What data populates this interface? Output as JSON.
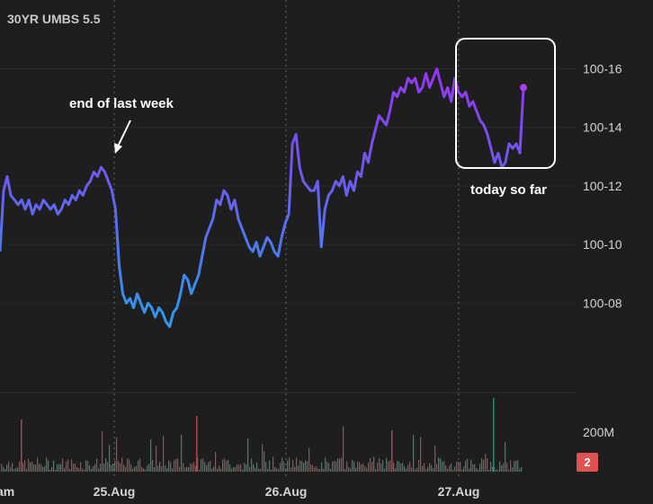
{
  "chart_data": {
    "type": "line",
    "title": "30YR UMBS 5.5",
    "y_tick_labels": [
      "100-08",
      "100-10",
      "100-12",
      "100-14",
      "100-16"
    ],
    "y_tick_values": [
      100.25,
      100.3125,
      100.375,
      100.4375,
      100.5
    ],
    "ylim": [
      100.19,
      100.535
    ],
    "x_tick_labels": [
      "am",
      "25.Aug",
      "26.Aug",
      "27.Aug"
    ],
    "volume_axis_label": "200M",
    "volume_badge": "2",
    "grid": false,
    "annotations": [
      {
        "text": "end of last week"
      },
      {
        "text": "today so far"
      }
    ],
    "series": [
      {
        "x": [
          0,
          1,
          2,
          3,
          4,
          5,
          6,
          7,
          8,
          9,
          10,
          11,
          12,
          13,
          14,
          15,
          16,
          17,
          18,
          19,
          20,
          21,
          22,
          23,
          24,
          25,
          26,
          27,
          28,
          29,
          30,
          31,
          32,
          33,
          34,
          35,
          36,
          37,
          38,
          39,
          40,
          41,
          42,
          43,
          44,
          45,
          46,
          47,
          48,
          49,
          50,
          51,
          52,
          53,
          54,
          55,
          56,
          57,
          58,
          59,
          60,
          61,
          62,
          63,
          64,
          65,
          66,
          67,
          68,
          69,
          70,
          71,
          72,
          73,
          74,
          75,
          76,
          77,
          78,
          79,
          80,
          81,
          82,
          83,
          84,
          85,
          86,
          87,
          88,
          89,
          90,
          91,
          92,
          93,
          94,
          95,
          96,
          97,
          98,
          99,
          100,
          101,
          102,
          103,
          104,
          105,
          106,
          107,
          108,
          109,
          110,
          111,
          112,
          113,
          114,
          115,
          116,
          117,
          118,
          119,
          120,
          121,
          122,
          123,
          124,
          125,
          126,
          127,
          128,
          129,
          130,
          131,
          132,
          133,
          134,
          135,
          136,
          137,
          138,
          139,
          140,
          141,
          142,
          143,
          144,
          145
        ],
        "values": [
          100.305,
          100.37,
          100.385,
          100.365,
          100.36,
          100.355,
          100.36,
          100.35,
          100.36,
          100.345,
          100.355,
          100.35,
          100.36,
          100.355,
          100.35,
          100.355,
          100.345,
          100.35,
          100.36,
          100.355,
          100.365,
          100.36,
          100.37,
          100.365,
          100.375,
          100.38,
          100.39,
          100.385,
          100.395,
          100.39,
          100.38,
          100.37,
          100.35,
          100.29,
          100.26,
          100.25,
          100.255,
          100.245,
          100.26,
          100.25,
          100.24,
          100.25,
          100.245,
          100.235,
          100.245,
          100.24,
          100.23,
          100.225,
          100.24,
          100.245,
          100.26,
          100.28,
          100.275,
          100.26,
          100.27,
          100.28,
          100.3,
          100.32,
          100.33,
          100.34,
          100.36,
          100.355,
          100.37,
          100.365,
          100.35,
          100.36,
          100.34,
          100.33,
          100.32,
          100.31,
          100.305,
          100.315,
          100.3,
          100.31,
          100.32,
          100.315,
          100.305,
          100.3,
          100.32,
          100.335,
          100.345,
          100.42,
          100.43,
          100.395,
          100.38,
          100.375,
          100.37,
          100.37,
          100.38,
          100.31,
          100.35,
          100.365,
          100.37,
          100.38,
          100.375,
          100.385,
          100.365,
          100.38,
          100.37,
          100.39,
          100.385,
          100.41,
          100.4,
          100.42,
          100.435,
          100.45,
          100.445,
          100.44,
          100.455,
          100.475,
          100.47,
          100.48,
          100.475,
          100.49,
          100.485,
          100.49,
          100.475,
          100.48,
          100.495,
          100.48,
          100.49,
          100.5,
          100.485,
          100.47,
          100.48,
          100.465,
          100.49,
          100.475,
          100.47,
          100.475,
          100.46,
          100.465,
          100.455,
          100.445,
          100.44,
          100.43,
          100.415,
          100.4,
          100.41,
          100.395,
          100.4,
          100.42,
          100.415,
          100.42,
          100.41,
          100.48
        ]
      }
    ]
  }
}
